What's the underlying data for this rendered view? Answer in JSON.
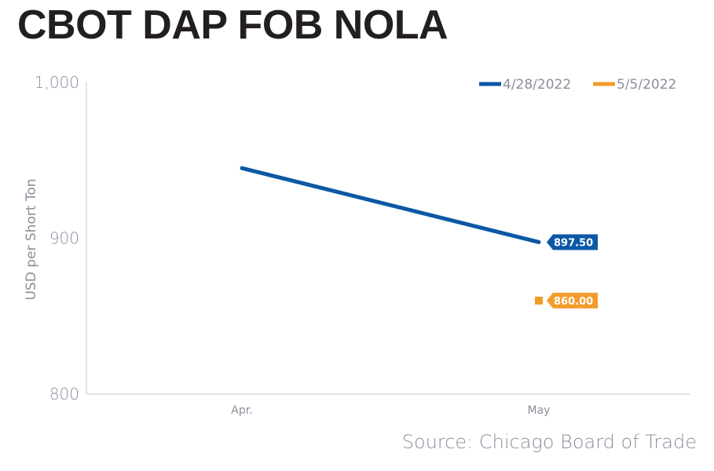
{
  "chart_data": {
    "type": "line",
    "title": "CBOT DAP FOB NOLA",
    "xlabel": "",
    "ylabel": "USD per Short Ton",
    "categories": [
      "Apr.",
      "May"
    ],
    "ylim": [
      800,
      1000
    ],
    "yticks": [
      800,
      900,
      1000
    ],
    "ytick_labels": [
      "800",
      "900",
      "1,000"
    ],
    "grid": false,
    "legend": "top-right",
    "series": [
      {
        "name": "4/28/2022",
        "color": "#0b58a6",
        "values": [
          945,
          897.5
        ],
        "end_label": "897.50"
      },
      {
        "name": "5/5/2022",
        "color": "#f29c2b",
        "values": [
          null,
          860
        ],
        "end_label": "860.00"
      }
    ],
    "source": "Source: Chicago Board of Trade"
  }
}
